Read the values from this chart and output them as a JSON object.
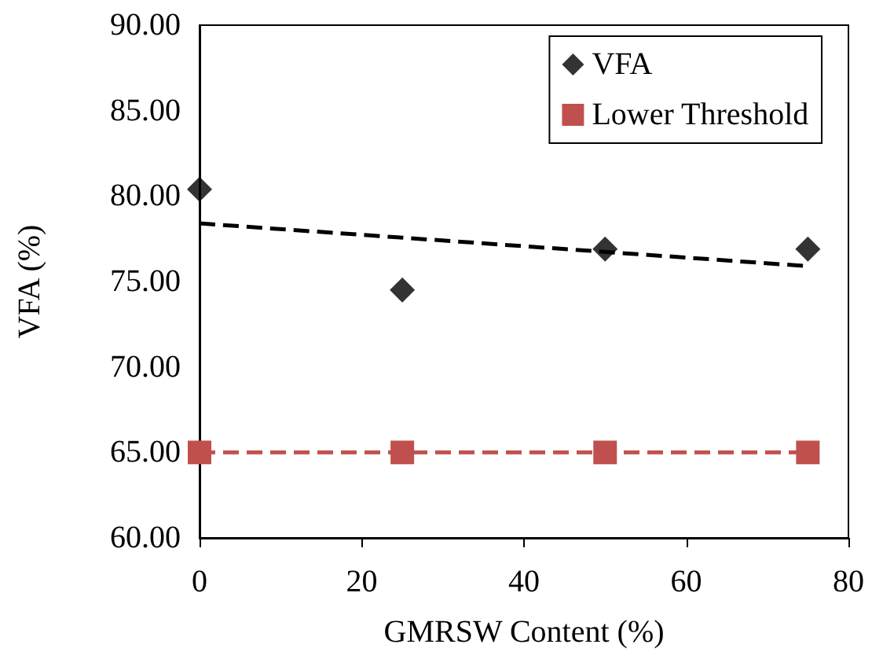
{
  "chart_data": {
    "type": "scatter",
    "xlabel": "GMRSW Content (%)",
    "ylabel": "VFA (%)",
    "xlim": [
      0,
      80
    ],
    "xticks": [
      0,
      20,
      40,
      60,
      80
    ],
    "ylim": [
      60,
      90
    ],
    "yticks": [
      {
        "value": 60,
        "label": "60.00"
      },
      {
        "value": 65,
        "label": "65.00"
      },
      {
        "value": 70,
        "label": "70.00"
      },
      {
        "value": 75,
        "label": "75.00"
      },
      {
        "value": 80,
        "label": "80.00"
      },
      {
        "value": 85,
        "label": "85.00"
      },
      {
        "value": 90,
        "label": "90.00"
      }
    ],
    "grid": false,
    "legend": "top right",
    "series": [
      {
        "name": "VFA",
        "marker": "diamond",
        "color": "#000000",
        "x": [
          0,
          25,
          50,
          75
        ],
        "values": [
          80.4,
          74.5,
          76.9,
          76.9
        ]
      },
      {
        "name": "Lower Threshold",
        "type": "line",
        "marker": "square",
        "line_style": "dashed",
        "color": "#c0504d",
        "x": [
          0,
          25,
          50,
          75
        ],
        "values": [
          65,
          65,
          65,
          65
        ]
      },
      {
        "type": "line",
        "marker": "none",
        "line_style": "dashed",
        "color": "#000000",
        "x": [
          0,
          75
        ],
        "values": [
          78.4,
          75.9
        ]
      }
    ]
  }
}
